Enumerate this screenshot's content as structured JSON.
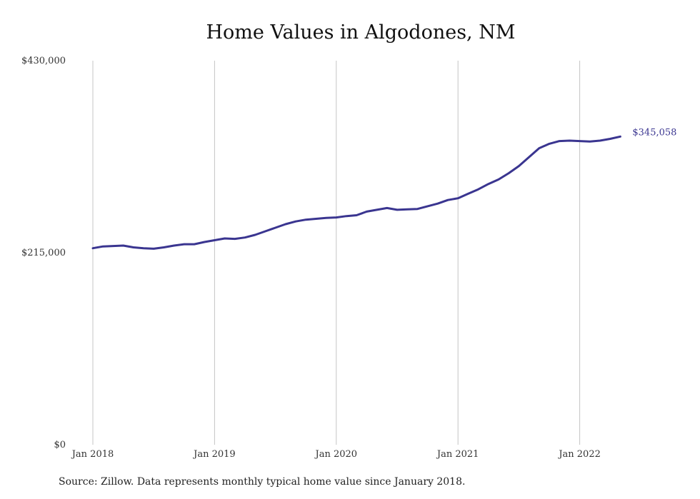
{
  "chart_data": {
    "type": "line",
    "title": "Home Values in Algodones, NM",
    "xlabel": "",
    "ylabel": "",
    "ylim": [
      0,
      430000
    ],
    "y_ticks": [
      {
        "value": 0,
        "label": "$0"
      },
      {
        "value": 215000,
        "label": "$215,000"
      },
      {
        "value": 430000,
        "label": "$430,000"
      }
    ],
    "x_ticks": [
      {
        "index": 0,
        "label": "Jan 2018"
      },
      {
        "index": 12,
        "label": "Jan 2019"
      },
      {
        "index": 24,
        "label": "Jan 2020"
      },
      {
        "index": 36,
        "label": "Jan 2021"
      },
      {
        "index": 48,
        "label": "Jan 2022"
      }
    ],
    "grid": {
      "vertical": true,
      "horizontal": false
    },
    "line_color": "#3a3590",
    "end_label": "$345,058",
    "series": [
      {
        "x": [
          "2018-01",
          "2018-02",
          "2018-03",
          "2018-04",
          "2018-05",
          "2018-06",
          "2018-07",
          "2018-08",
          "2018-09",
          "2018-10",
          "2018-11",
          "2018-12",
          "2019-01",
          "2019-02",
          "2019-03",
          "2019-04",
          "2019-05",
          "2019-06",
          "2019-07",
          "2019-08",
          "2019-09",
          "2019-10",
          "2019-11",
          "2019-12",
          "2020-01",
          "2020-02",
          "2020-03",
          "2020-04",
          "2020-05",
          "2020-06",
          "2020-07",
          "2020-08",
          "2020-09",
          "2020-10",
          "2020-11",
          "2020-12",
          "2021-01",
          "2021-02",
          "2021-03",
          "2021-04",
          "2021-05",
          "2021-06",
          "2021-07",
          "2021-08",
          "2021-09",
          "2021-10",
          "2021-11",
          "2021-12",
          "2022-01",
          "2022-02",
          "2022-03",
          "2022-04",
          "2022-05"
        ],
        "values": [
          220000,
          222000,
          222500,
          223000,
          221000,
          220000,
          219500,
          221000,
          223000,
          224500,
          224500,
          227000,
          229000,
          231000,
          230500,
          232000,
          235000,
          239000,
          243000,
          247000,
          250000,
          252000,
          253000,
          254000,
          254500,
          256000,
          257000,
          261000,
          263000,
          265000,
          263000,
          263500,
          264000,
          267000,
          270000,
          274000,
          276000,
          281000,
          286000,
          292000,
          297000,
          304000,
          312000,
          322000,
          332000,
          337000,
          340000,
          340500,
          340000,
          339500,
          340500,
          342500,
          345058
        ]
      }
    ]
  },
  "footer": {
    "source": "Source: Zillow. Data represents monthly typical home value since January 2018."
  }
}
